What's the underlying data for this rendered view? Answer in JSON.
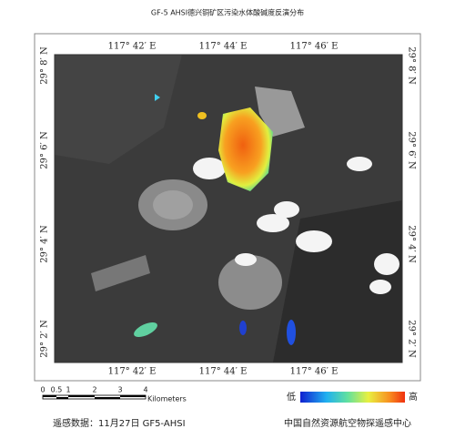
{
  "title": "GF-5 AHSI德兴铜矿区污染水体酸碱度反演分布",
  "top_labels": [
    "117° 42′ E",
    "117° 44′ E",
    "117° 46′ E"
  ],
  "bottom_labels": [
    "117° 42′ E",
    "117° 44′ E",
    "117° 46′ E"
  ],
  "left_labels": [
    "29° 8′ N",
    "29° 6′ N",
    "29° 4′ N",
    "29° 2′ N"
  ],
  "right_labels": [
    "29° 8′ N",
    "29° 6′ N",
    "29° 4′ N",
    "29° 2′ N"
  ],
  "scale_bar": {
    "labels": [
      "0",
      "0.5",
      "1",
      "2",
      "3",
      "4"
    ],
    "unit": "Kilometers"
  },
  "legend": {
    "low": "低",
    "high": "高"
  },
  "footer": {
    "source": "遥感数据：11月27日 GF5-AHSI",
    "agency": "中国自然资源航空物探遥感中心"
  }
}
